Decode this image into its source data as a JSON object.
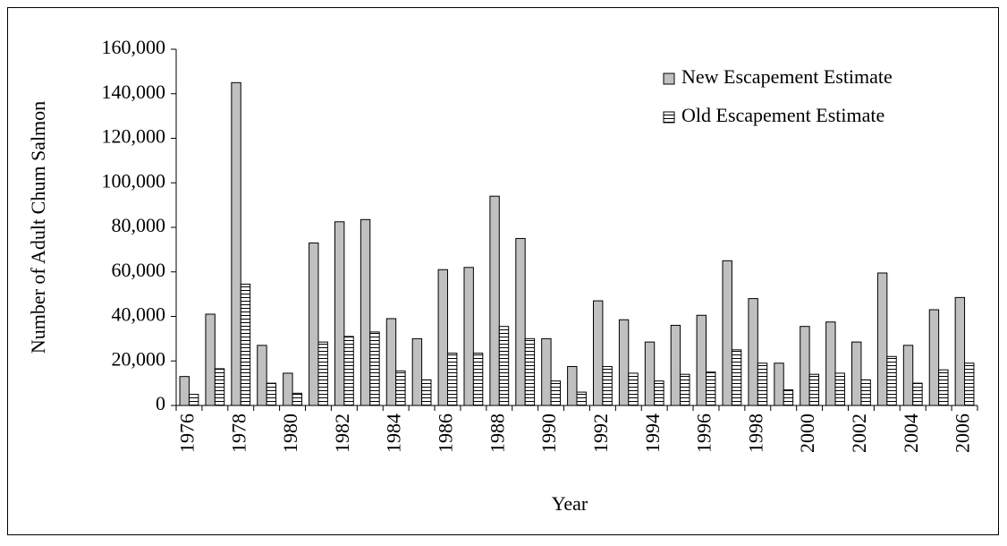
{
  "chart_data": {
    "type": "bar",
    "x_label": "Year",
    "y_label": "Number of Adult Chum Salmon",
    "categories": [
      "1976",
      null,
      "1978",
      null,
      "1980",
      null,
      "1982",
      null,
      "1984",
      null,
      "1986",
      null,
      "1988",
      null,
      "1990",
      null,
      "1992",
      null,
      "1994",
      null,
      "1996",
      null,
      "1998",
      null,
      "2000",
      null,
      "2002",
      null,
      "2004",
      null,
      "2006"
    ],
    "series": [
      {
        "name": "New Escapement Estimate",
        "color": "#c0c0c0",
        "hatch": "none",
        "values": [
          13000,
          41000,
          145000,
          27000,
          14500,
          73000,
          82500,
          83500,
          39000,
          30000,
          61000,
          62000,
          94000,
          75000,
          30000,
          17500,
          47000,
          38500,
          28500,
          36000,
          40500,
          65000,
          48000,
          19000,
          35500,
          37500,
          28500,
          59500,
          27000,
          43000,
          48500
        ]
      },
      {
        "name": "Old Escapement Estimate",
        "color": "#ffffff",
        "hatch": "horizontal",
        "values": [
          5000,
          16500,
          54500,
          10000,
          5500,
          28500,
          31000,
          33000,
          15500,
          11500,
          23500,
          23500,
          35500,
          30000,
          11000,
          6000,
          17500,
          14500,
          11000,
          14000,
          15000,
          25000,
          19000,
          7000,
          14000,
          14500,
          11500,
          22000,
          10000,
          16000,
          19000
        ]
      }
    ],
    "ylim": [
      0,
      160000
    ],
    "yticks": [
      0,
      {
        "value": 20000,
        "label": "20,000"
      },
      {
        "value": 40000,
        "label": "40,000"
      },
      {
        "value": 60000,
        "label": "60,000"
      },
      {
        "value": 80000,
        "label": "80,000"
      },
      {
        "value": 100000,
        "label": "100,000"
      },
      {
        "value": 120000,
        "label": "120,000"
      },
      {
        "value": 140000,
        "label": "140,000"
      },
      {
        "value": 160000,
        "label": "160,000"
      }
    ],
    "grid": false,
    "legend": "top-right"
  }
}
